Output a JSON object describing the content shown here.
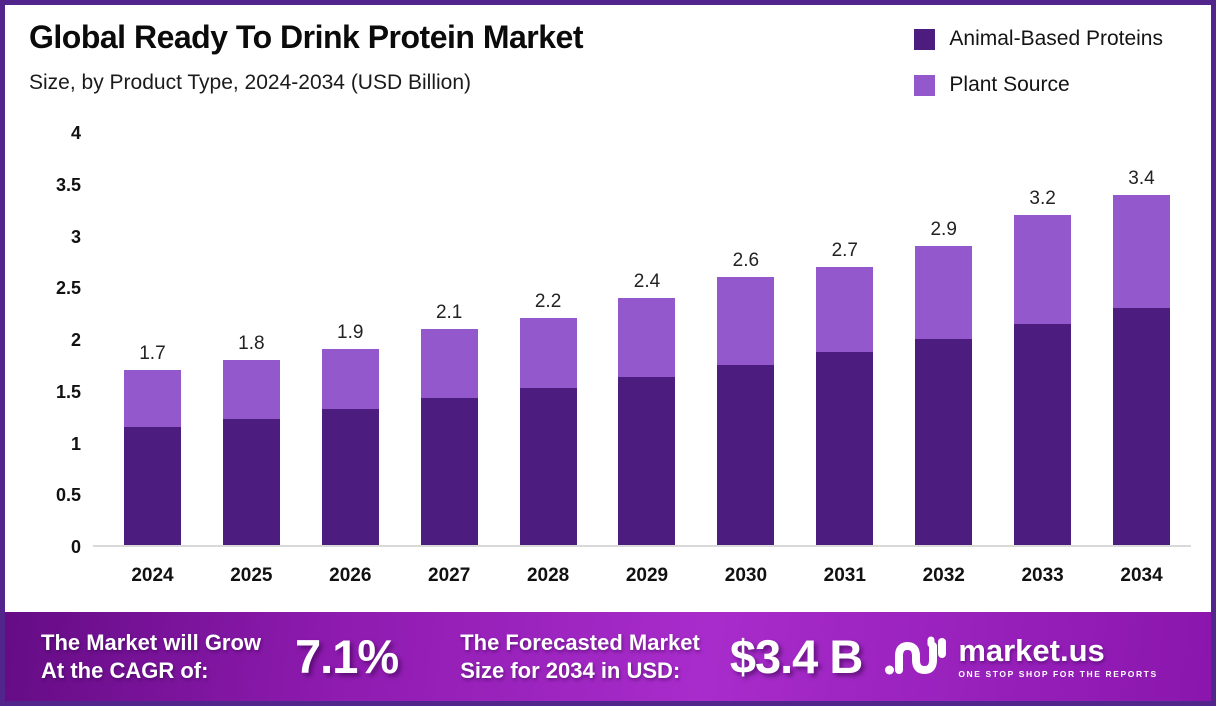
{
  "header": {
    "title": "Global Ready To Drink Protein Market",
    "subtitle": "Size, by Product Type, 2024-2034 (USD Billion)"
  },
  "legend": [
    {
      "label": "Animal-Based Proteins",
      "color": "#4c1d7f"
    },
    {
      "label": "Plant Source",
      "color": "#9458cd"
    }
  ],
  "chart_data": {
    "type": "bar",
    "stacked": true,
    "title": "Global Ready To Drink Protein Market Size, by Product Type, 2024-2034 (USD Billion)",
    "xlabel": "",
    "ylabel": "",
    "categories": [
      "2024",
      "2025",
      "2026",
      "2027",
      "2028",
      "2029",
      "2030",
      "2031",
      "2032",
      "2033",
      "2034"
    ],
    "series": [
      {
        "name": "Animal-Based Proteins",
        "color": "#4c1d7f",
        "values": [
          1.15,
          1.22,
          1.32,
          1.43,
          1.52,
          1.63,
          1.75,
          1.87,
          2.0,
          2.15,
          2.3
        ]
      },
      {
        "name": "Plant Source",
        "color": "#9458cd",
        "values": [
          0.55,
          0.58,
          0.58,
          0.67,
          0.68,
          0.77,
          0.85,
          0.83,
          0.9,
          1.05,
          1.1
        ]
      }
    ],
    "totals": [
      "1.7",
      "1.8",
      "1.9",
      "2.1",
      "2.2",
      "2.4",
      "2.6",
      "2.7",
      "2.9",
      "3.2",
      "3.4"
    ],
    "ylim": [
      0,
      4
    ],
    "ytick_labels": [
      "0",
      "0.5",
      "1",
      "1.5",
      "2",
      "2.5",
      "3",
      "3.5",
      "4"
    ],
    "grid": false,
    "legend_position": "top-right",
    "baseline_color": "#d9d9d9"
  },
  "footer": {
    "cagr": {
      "label_line1": "The Market will Grow",
      "label_line2": "At the CAGR of:",
      "value": "7.1%"
    },
    "forecast": {
      "label_line1": "The Forecasted Market",
      "label_line2": "Size for 2034 in USD:",
      "value": "$3.4 B"
    },
    "brand": {
      "name": "market.us",
      "tagline": "ONE STOP SHOP FOR THE REPORTS"
    }
  }
}
